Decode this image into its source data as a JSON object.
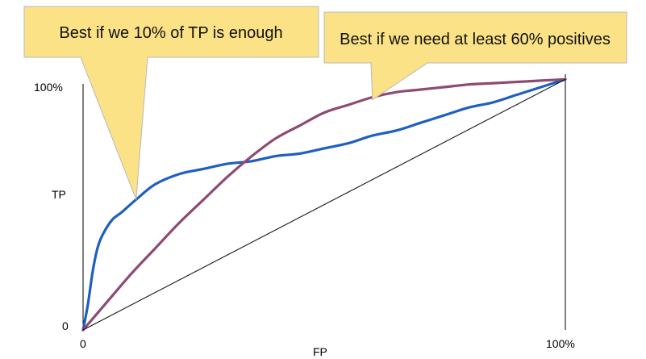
{
  "chart_data": {
    "type": "line",
    "title": "",
    "xlabel": "FP",
    "ylabel": "TP",
    "x_ticks": [
      "0",
      "100%"
    ],
    "y_ticks": [
      "0",
      "100%"
    ],
    "xlim": [
      0,
      100
    ],
    "ylim": [
      0,
      100
    ],
    "grid": false,
    "series": [
      {
        "color": "#1f5fbf",
        "x": [
          0,
          1,
          2,
          3,
          4,
          6,
          8,
          11,
          15,
          20,
          25,
          30,
          35,
          40,
          45,
          50,
          55,
          60,
          65,
          70,
          75,
          80,
          85,
          90,
          95,
          100
        ],
        "y": [
          0,
          10,
          23,
          32,
          37,
          43,
          46,
          51,
          57,
          61,
          63,
          65,
          66,
          68,
          69,
          71,
          73,
          76,
          78,
          81,
          84,
          87,
          89,
          92,
          95,
          98
        ]
      },
      {
        "color": "#8e4a72",
        "x": [
          0,
          5,
          10,
          15,
          20,
          25,
          30,
          35,
          40,
          45,
          50,
          55,
          60,
          65,
          70,
          75,
          80,
          85,
          90,
          95,
          100
        ],
        "y": [
          0,
          11,
          22,
          32,
          42,
          51,
          60,
          68,
          75,
          80,
          85,
          88,
          91,
          93,
          94,
          95,
          96,
          96.5,
          97,
          97.5,
          98
        ]
      },
      {
        "color": "#000000",
        "x": [
          0,
          100
        ],
        "y": [
          0,
          98
        ]
      }
    ],
    "annotations": [
      {
        "text": "Best if we 10% of TP is enough",
        "point_x": 11,
        "point_y": 51
      },
      {
        "text": "Best if we need at least 60% positives",
        "point_x": 60,
        "point_y": 90
      }
    ]
  }
}
